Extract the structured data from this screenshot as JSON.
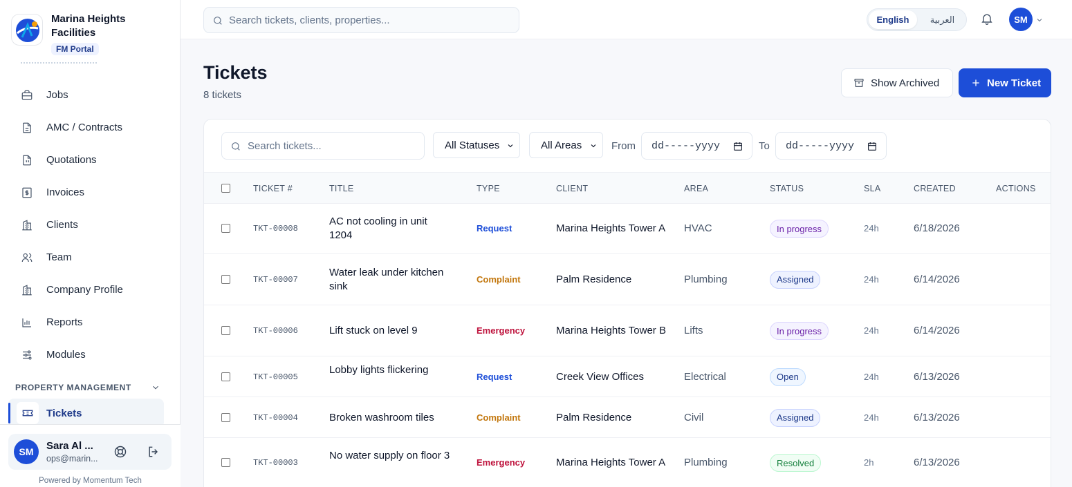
{
  "brand": {
    "name": "Marina Heights Facilities",
    "badge": "FM Portal"
  },
  "sidebar": {
    "items": [
      {
        "label": "Jobs",
        "icon": "briefcase-icon"
      },
      {
        "label": "AMC / Contracts",
        "icon": "document-icon"
      },
      {
        "label": "Quotations",
        "icon": "quote-document-icon"
      },
      {
        "label": "Invoices",
        "icon": "invoice-icon"
      },
      {
        "label": "Clients",
        "icon": "building-icon"
      },
      {
        "label": "Team",
        "icon": "users-icon"
      },
      {
        "label": "Company Profile",
        "icon": "building-icon"
      },
      {
        "label": "Reports",
        "icon": "bar-chart-icon"
      },
      {
        "label": "Modules",
        "icon": "sliders-icon"
      }
    ],
    "section": "PROPERTY MANAGEMENT",
    "active_item": "Tickets"
  },
  "user": {
    "initials": "SM",
    "name": "Sara Al ...",
    "email": "ops@marin..."
  },
  "powered_by": "Powered by Momentum Tech",
  "topbar": {
    "search_placeholder": "Search tickets, clients, properties...",
    "lang_en": "English",
    "lang_ar": "العربية",
    "avatar_initials": "SM"
  },
  "page": {
    "title": "Tickets",
    "subtitle": "8 tickets",
    "show_archived": "Show Archived",
    "new_ticket": "New Ticket"
  },
  "filters": {
    "search_placeholder": "Search tickets...",
    "status": "All Statuses",
    "area": "All Areas",
    "from_label": "From",
    "to_label": "To",
    "date_placeholder": "dd-----yyyy"
  },
  "table": {
    "headers": [
      "TICKET #",
      "TITLE",
      "TYPE",
      "CLIENT",
      "AREA",
      "STATUS",
      "SLA",
      "CREATED",
      "ACTIONS"
    ],
    "rows": [
      {
        "ticket": "TKT-00008",
        "title": "AC not cooling in unit 1204",
        "type": "Request",
        "client": "Marina Heights Tower A",
        "area": "HVAC",
        "status": "In progress",
        "sla": "24h",
        "created": "6/18/2026"
      },
      {
        "ticket": "TKT-00007",
        "title": "Water leak under kitchen sink",
        "type": "Complaint",
        "client": "Palm Residence",
        "area": "Plumbing",
        "status": "Assigned",
        "sla": "24h",
        "created": "6/14/2026"
      },
      {
        "ticket": "TKT-00006",
        "title": "Lift stuck on level 9",
        "type": "Emergency",
        "client": "Marina Heights Tower B",
        "area": "Lifts",
        "status": "In progress",
        "sla": "24h",
        "created": "6/14/2026"
      },
      {
        "ticket": "TKT-00005",
        "title": "Lobby lights flickering",
        "type": "Request",
        "client": "Creek View Offices",
        "area": "Electrical",
        "status": "Open",
        "sla": "24h",
        "created": "6/13/2026"
      },
      {
        "ticket": "TKT-00004",
        "title": "Broken washroom tiles",
        "type": "Complaint",
        "client": "Palm Residence",
        "area": "Civil",
        "status": "Assigned",
        "sla": "24h",
        "created": "6/13/2026"
      },
      {
        "ticket": "TKT-00003",
        "title": "No water supply on floor 3",
        "type": "Emergency",
        "client": "Marina Heights Tower A",
        "area": "Plumbing",
        "status": "Resolved",
        "sla": "2h",
        "created": "6/13/2026"
      }
    ]
  },
  "colors": {
    "accent": "#1d4ed8",
    "type_request": "#1d4ed8",
    "type_complaint": "#c2760c",
    "type_emergency": "#be123c",
    "status_in_progress": "#6b21a8",
    "status_assigned": "#1e3a8a",
    "status_open": "#1e3a8a",
    "status_resolved": "#15803d"
  }
}
